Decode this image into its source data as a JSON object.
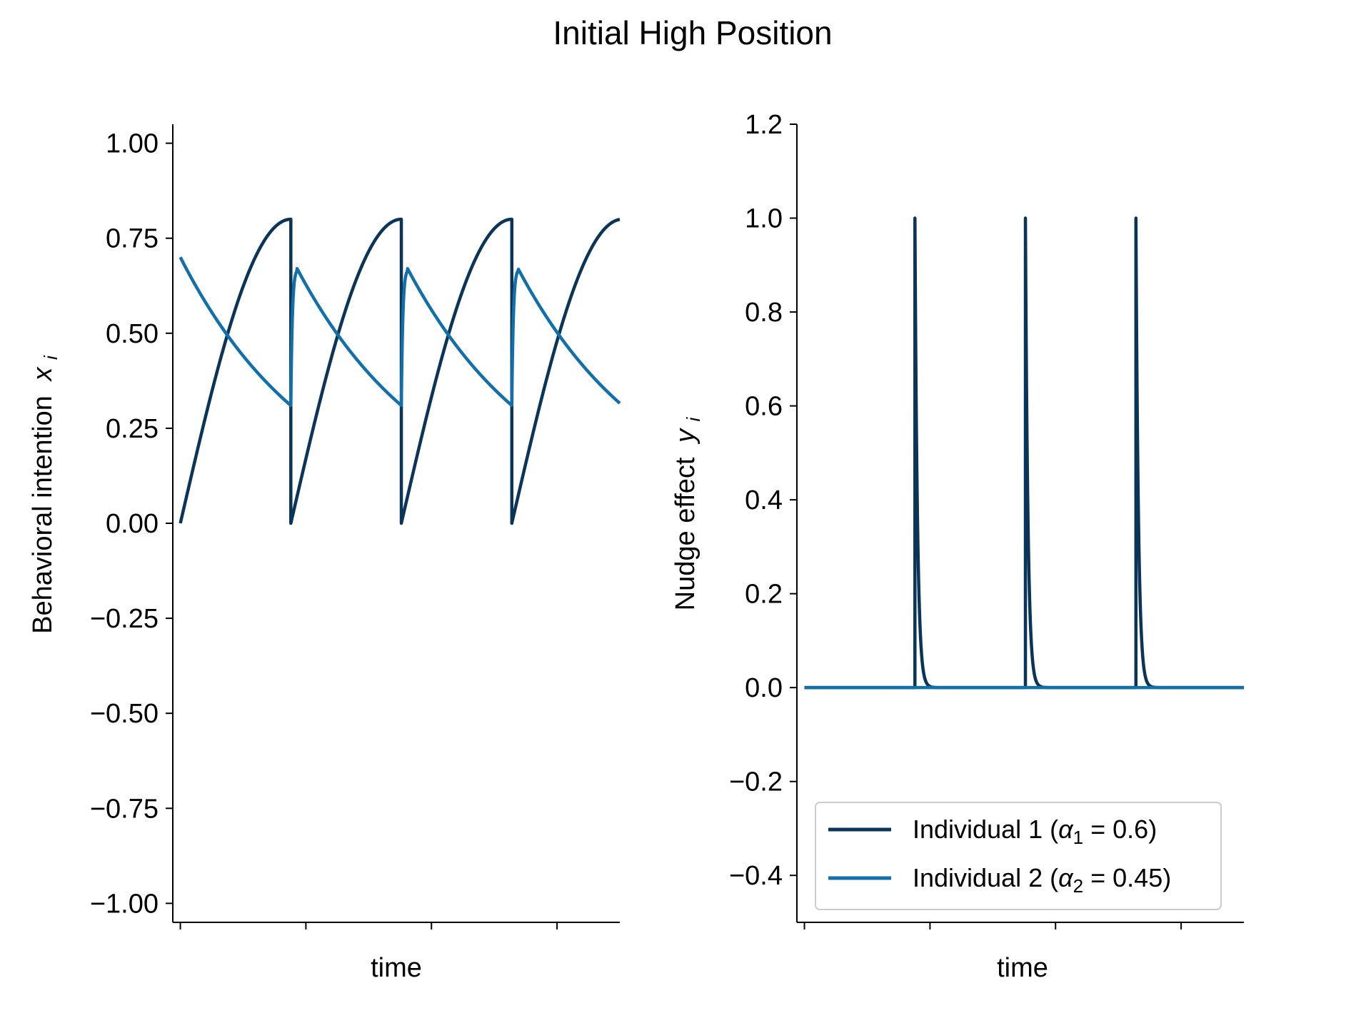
{
  "figure": {
    "title": "Initial High Position"
  },
  "colors": {
    "individual_1": "#0b3558",
    "individual_2": "#1170aa"
  },
  "chart_data": [
    {
      "type": "line",
      "name": "behavioral-intention-chart",
      "title": "",
      "xlabel": "time",
      "ylabel": "Behavioral intention",
      "ylabel_symbol": "x",
      "ylabel_subscript": "i",
      "xlim": [
        -0.3,
        17.5
      ],
      "ylim": [
        -1.05,
        1.05
      ],
      "yticks": [
        -1.0,
        -0.75,
        -0.5,
        -0.25,
        0.0,
        0.25,
        0.5,
        0.75,
        1.0
      ],
      "ytick_labels": [
        "−1.00",
        "−0.75",
        "−0.50",
        "−0.25",
        "0.00",
        "0.25",
        "0.50",
        "0.75",
        "1.00"
      ],
      "xticks": [
        0,
        5,
        10,
        15
      ],
      "xtick_labels": [
        "",
        "",
        "",
        ""
      ],
      "nudge_period": 4.4,
      "series": [
        {
          "name": "Individual 1",
          "color_key": "individual_1",
          "start_value": 0.0,
          "peak_value": 0.8,
          "shape": "rises from 0.00 to 0.80, drops to 0.00 at each nudge"
        },
        {
          "name": "Individual 2",
          "color_key": "individual_2",
          "start_value": 0.7,
          "min_value": 0.31,
          "after_nudge_peak": 0.67,
          "shape": "decays from 0.70 to 0.31, jumps to ~0.67 at each nudge"
        }
      ],
      "nudge_times": [
        4.4,
        8.8,
        13.2
      ]
    },
    {
      "type": "line",
      "name": "nudge-effect-chart",
      "title": "",
      "xlabel": "time",
      "ylabel": "Nudge effect",
      "ylabel_symbol": "y",
      "ylabel_subscript": "i",
      "xlim": [
        -0.3,
        17.5
      ],
      "ylim": [
        -0.5,
        1.2
      ],
      "yticks": [
        -0.4,
        -0.2,
        0.0,
        0.2,
        0.4,
        0.6,
        0.8,
        1.0,
        1.2
      ],
      "ytick_labels": [
        "−0.4",
        "−0.2",
        "0.0",
        "0.2",
        "0.4",
        "0.6",
        "0.8",
        "1.0",
        "1.2"
      ],
      "xticks": [
        0,
        5,
        10,
        15
      ],
      "xtick_labels": [
        "",
        "",
        "",
        ""
      ],
      "series": [
        {
          "name": "Individual 1",
          "color_key": "individual_1",
          "spikes": [
            {
              "t": 4.4,
              "peak": 1.0
            },
            {
              "t": 8.8,
              "peak": 1.0
            },
            {
              "t": 13.2,
              "peak": 1.0
            }
          ],
          "baseline": 0.0
        },
        {
          "name": "Individual 2",
          "color_key": "individual_2",
          "constant_value": 0.0
        }
      ],
      "legend": {
        "placement": "lower-left",
        "entries": [
          {
            "prefix": "Individual 1 (",
            "symbol": "α",
            "sub": "1",
            "suffix": " = 0.6)",
            "color_key": "individual_1"
          },
          {
            "prefix": "Individual 2 (",
            "symbol": "α",
            "sub": "2",
            "suffix": " = 0.45)",
            "color_key": "individual_2"
          }
        ]
      }
    }
  ]
}
